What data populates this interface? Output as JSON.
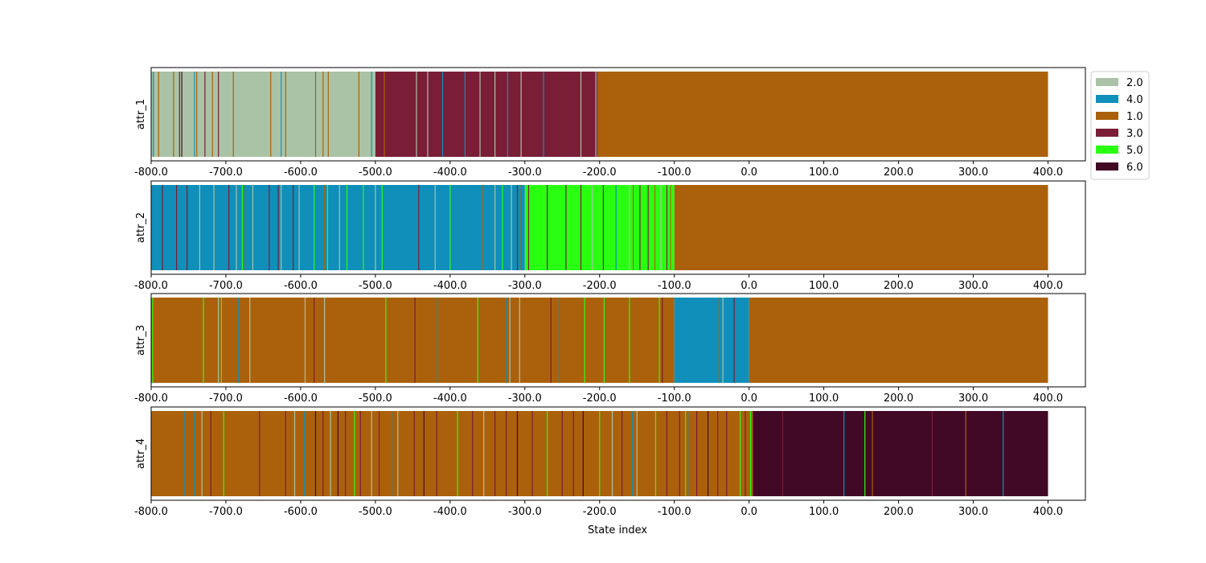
{
  "chart_data": {
    "type": "categorical-strip",
    "xlabel": "State index",
    "xlim": [
      -800,
      450
    ],
    "xticks": [
      -800,
      -700,
      -600,
      -500,
      -400,
      -300,
      -200,
      -100,
      0,
      100,
      200,
      300,
      400
    ],
    "xtick_labels": [
      "-800.0",
      "-700.0",
      "-600.0",
      "-500.0",
      "-400.0",
      "-300.0",
      "-200.0",
      "-100.0",
      "0.0",
      "100.0",
      "200.0",
      "300.0",
      "400.0"
    ],
    "legend": {
      "placement": "upper-right-outside",
      "entries": [
        {
          "label": "2.0",
          "color": "#aac3a6"
        },
        {
          "label": "4.0",
          "color": "#0f8fba"
        },
        {
          "label": "1.0",
          "color": "#ab610b"
        },
        {
          "label": "3.0",
          "color": "#7a1d36"
        },
        {
          "label": "5.0",
          "color": "#28ff11"
        },
        {
          "label": "6.0",
          "color": "#420926"
        }
      ]
    },
    "series": [
      {
        "name": "attr_1",
        "segments": [
          {
            "start": -800,
            "end": -500,
            "value": "2.0"
          },
          {
            "start": -500,
            "end": -203,
            "value": "3.0"
          },
          {
            "start": -203,
            "end": 400,
            "value": "1.0"
          }
        ],
        "spikes": [
          {
            "x": -797,
            "value": "4.0"
          },
          {
            "x": -790,
            "value": "1.0"
          },
          {
            "x": -770,
            "value": "1.0"
          },
          {
            "x": -762,
            "value": "3.0"
          },
          {
            "x": -759,
            "value": "6.0"
          },
          {
            "x": -742,
            "value": "4.0"
          },
          {
            "x": -739,
            "value": "1.0"
          },
          {
            "x": -728,
            "value": "3.0"
          },
          {
            "x": -718,
            "value": "1.0"
          },
          {
            "x": -710,
            "value": "3.0"
          },
          {
            "x": -690,
            "value": "1.0"
          },
          {
            "x": -640,
            "value": "1.0"
          },
          {
            "x": -626,
            "value": "4.0"
          },
          {
            "x": -620,
            "value": "1.0"
          },
          {
            "x": -580,
            "value": "1.0"
          },
          {
            "x": -570,
            "value": "1.0"
          },
          {
            "x": -563,
            "value": "1.0"
          },
          {
            "x": -522,
            "value": "1.0"
          },
          {
            "x": -505,
            "value": "4.0"
          },
          {
            "x": -488,
            "value": "1.0"
          },
          {
            "x": -445,
            "value": "2.0"
          },
          {
            "x": -430,
            "value": "2.0"
          },
          {
            "x": -410,
            "value": "4.0"
          },
          {
            "x": -380,
            "value": "4.0"
          },
          {
            "x": -360,
            "value": "2.0"
          },
          {
            "x": -340,
            "value": "2.0"
          },
          {
            "x": -323,
            "value": "4.0"
          },
          {
            "x": -305,
            "value": "2.0"
          },
          {
            "x": -275,
            "value": "4.0"
          },
          {
            "x": -225,
            "value": "2.0"
          },
          {
            "x": -205,
            "value": "2.0"
          }
        ]
      },
      {
        "name": "attr_2",
        "segments": [
          {
            "start": -800,
            "end": -300,
            "value": "4.0"
          },
          {
            "start": -300,
            "end": -100,
            "value": "5.0"
          },
          {
            "start": -100,
            "end": 400,
            "value": "1.0"
          }
        ],
        "spikes": [
          {
            "x": -785,
            "value": "3.0"
          },
          {
            "x": -766,
            "value": "3.0"
          },
          {
            "x": -752,
            "value": "3.0"
          },
          {
            "x": -735,
            "value": "2.0"
          },
          {
            "x": -716,
            "value": "2.0"
          },
          {
            "x": -696,
            "value": "3.0"
          },
          {
            "x": -686,
            "value": "2.0"
          },
          {
            "x": -678,
            "value": "5.0"
          },
          {
            "x": -674,
            "value": "1.0"
          },
          {
            "x": -664,
            "value": "2.0"
          },
          {
            "x": -642,
            "value": "3.0"
          },
          {
            "x": -630,
            "value": "3.0"
          },
          {
            "x": -626,
            "value": "2.0"
          },
          {
            "x": -610,
            "value": "3.0"
          },
          {
            "x": -602,
            "value": "2.0"
          },
          {
            "x": -582,
            "value": "5.0"
          },
          {
            "x": -568,
            "value": "1.0"
          },
          {
            "x": -564,
            "value": "5.0"
          },
          {
            "x": -548,
            "value": "2.0"
          },
          {
            "x": -538,
            "value": "5.0"
          },
          {
            "x": -516,
            "value": "5.0"
          },
          {
            "x": -500,
            "value": "2.0"
          },
          {
            "x": -491,
            "value": "5.0"
          },
          {
            "x": -442,
            "value": "3.0"
          },
          {
            "x": -420,
            "value": "2.0"
          },
          {
            "x": -400,
            "value": "5.0"
          },
          {
            "x": -356,
            "value": "1.0"
          },
          {
            "x": -340,
            "value": "2.0"
          },
          {
            "x": -330,
            "value": "5.0"
          },
          {
            "x": -318,
            "value": "2.0"
          },
          {
            "x": -310,
            "value": "3.0"
          },
          {
            "x": -305,
            "value": "1.0"
          },
          {
            "x": -295,
            "value": "3.0"
          },
          {
            "x": -270,
            "value": "3.0"
          },
          {
            "x": -245,
            "value": "3.0"
          },
          {
            "x": -225,
            "value": "3.0"
          },
          {
            "x": -210,
            "value": "2.0"
          },
          {
            "x": -195,
            "value": "3.0"
          },
          {
            "x": -178,
            "value": "4.0"
          },
          {
            "x": -160,
            "value": "2.0"
          },
          {
            "x": -155,
            "value": "1.0"
          },
          {
            "x": -146,
            "value": "3.0"
          },
          {
            "x": -135,
            "value": "3.0"
          },
          {
            "x": -126,
            "value": "1.0"
          },
          {
            "x": -118,
            "value": "2.0"
          },
          {
            "x": -110,
            "value": "3.0"
          },
          {
            "x": -105,
            "value": "1.0"
          }
        ]
      },
      {
        "name": "attr_3",
        "segments": [
          {
            "start": -800,
            "end": -100,
            "value": "1.0"
          },
          {
            "start": -100,
            "end": 0,
            "value": "4.0"
          },
          {
            "start": 0,
            "end": 400,
            "value": "1.0"
          }
        ],
        "spikes": [
          {
            "x": -798,
            "value": "5.0"
          },
          {
            "x": -730,
            "value": "5.0"
          },
          {
            "x": -710,
            "value": "2.0"
          },
          {
            "x": -706,
            "value": "5.0"
          },
          {
            "x": -683,
            "value": "4.0"
          },
          {
            "x": -668,
            "value": "2.0"
          },
          {
            "x": -594,
            "value": "2.0"
          },
          {
            "x": -582,
            "value": "3.0"
          },
          {
            "x": -568,
            "value": "2.0"
          },
          {
            "x": -486,
            "value": "5.0"
          },
          {
            "x": -447,
            "value": "3.0"
          },
          {
            "x": -417,
            "value": "4.0"
          },
          {
            "x": -363,
            "value": "5.0"
          },
          {
            "x": -325,
            "value": "4.0"
          },
          {
            "x": -320,
            "value": "2.0"
          },
          {
            "x": -307,
            "value": "2.0"
          },
          {
            "x": -265,
            "value": "3.0"
          },
          {
            "x": -256,
            "value": "4.0"
          },
          {
            "x": -220,
            "value": "5.0"
          },
          {
            "x": -194,
            "value": "5.0"
          },
          {
            "x": -160,
            "value": "5.0"
          },
          {
            "x": -120,
            "value": "5.0"
          },
          {
            "x": -116,
            "value": "3.0"
          },
          {
            "x": -40,
            "value": "1.0"
          },
          {
            "x": -35,
            "value": "2.0"
          },
          {
            "x": -20,
            "value": "3.0"
          }
        ]
      },
      {
        "name": "attr_4",
        "segments": [
          {
            "start": -800,
            "end": 5,
            "value": "1.0"
          },
          {
            "start": 5,
            "end": 400,
            "value": "6.0"
          }
        ],
        "spikes": [
          {
            "x": -755,
            "value": "4.0"
          },
          {
            "x": -742,
            "value": "4.0"
          },
          {
            "x": -732,
            "value": "2.0"
          },
          {
            "x": -720,
            "value": "3.0"
          },
          {
            "x": -703,
            "value": "5.0"
          },
          {
            "x": -655,
            "value": "3.0"
          },
          {
            "x": -620,
            "value": "3.0"
          },
          {
            "x": -608,
            "value": "2.0"
          },
          {
            "x": -595,
            "value": "4.0"
          },
          {
            "x": -580,
            "value": "6.0"
          },
          {
            "x": -570,
            "value": "3.0"
          },
          {
            "x": -560,
            "value": "2.0"
          },
          {
            "x": -550,
            "value": "6.0"
          },
          {
            "x": -540,
            "value": "3.0"
          },
          {
            "x": -528,
            "value": "5.0"
          },
          {
            "x": -520,
            "value": "3.0"
          },
          {
            "x": -505,
            "value": "2.0"
          },
          {
            "x": -495,
            "value": "3.0"
          },
          {
            "x": -476,
            "value": "4.0"
          },
          {
            "x": -470,
            "value": "2.0"
          },
          {
            "x": -448,
            "value": "3.0"
          },
          {
            "x": -435,
            "value": "6.0"
          },
          {
            "x": -418,
            "value": "3.0"
          },
          {
            "x": -390,
            "value": "5.0"
          },
          {
            "x": -370,
            "value": "3.0"
          },
          {
            "x": -355,
            "value": "2.0"
          },
          {
            "x": -340,
            "value": "3.0"
          },
          {
            "x": -325,
            "value": "3.0"
          },
          {
            "x": -310,
            "value": "6.0"
          },
          {
            "x": -290,
            "value": "3.0"
          },
          {
            "x": -270,
            "value": "5.0"
          },
          {
            "x": -250,
            "value": "3.0"
          },
          {
            "x": -235,
            "value": "3.0"
          },
          {
            "x": -222,
            "value": "6.0"
          },
          {
            "x": -200,
            "value": "5.0"
          },
          {
            "x": -183,
            "value": "2.0"
          },
          {
            "x": -170,
            "value": "3.0"
          },
          {
            "x": -156,
            "value": "4.0"
          },
          {
            "x": -150,
            "value": "2.0"
          },
          {
            "x": -125,
            "value": "5.0"
          },
          {
            "x": -110,
            "value": "3.0"
          },
          {
            "x": -93,
            "value": "3.0"
          },
          {
            "x": -85,
            "value": "5.0"
          },
          {
            "x": -82,
            "value": "4.0"
          },
          {
            "x": -70,
            "value": "3.0"
          },
          {
            "x": -55,
            "value": "6.0"
          },
          {
            "x": -42,
            "value": "3.0"
          },
          {
            "x": -30,
            "value": "3.0"
          },
          {
            "x": -12,
            "value": "5.0"
          },
          {
            "x": -5,
            "value": "3.0"
          },
          {
            "x": 2,
            "value": "5.0"
          },
          {
            "x": 45,
            "value": "3.0"
          },
          {
            "x": 127,
            "value": "4.0"
          },
          {
            "x": 155,
            "value": "5.0"
          },
          {
            "x": 165,
            "value": "1.0"
          },
          {
            "x": 245,
            "value": "3.0"
          },
          {
            "x": 290,
            "value": "1.0"
          },
          {
            "x": 340,
            "value": "4.0"
          }
        ]
      }
    ]
  }
}
